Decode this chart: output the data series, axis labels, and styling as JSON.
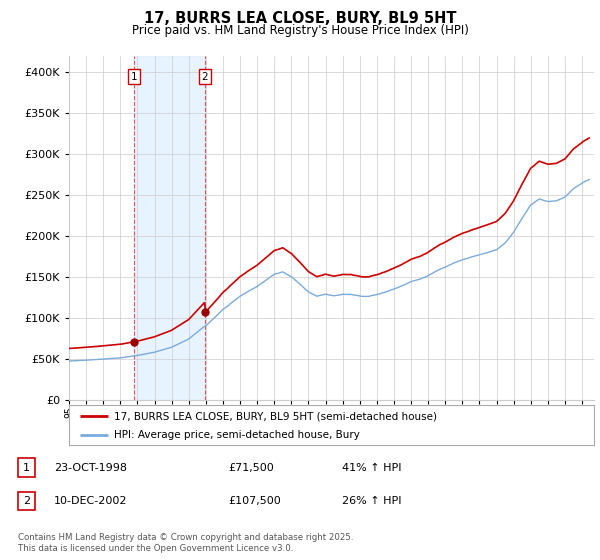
{
  "title": "17, BURRS LEA CLOSE, BURY, BL9 5HT",
  "subtitle": "Price paid vs. HM Land Registry's House Price Index (HPI)",
  "legend_line1": "17, BURRS LEA CLOSE, BURY, BL9 5HT (semi-detached house)",
  "legend_line2": "HPI: Average price, semi-detached house, Bury",
  "annotation1_date": "23-OCT-1998",
  "annotation1_price": "£71,500",
  "annotation1_hpi": "41% ↑ HPI",
  "annotation2_date": "10-DEC-2002",
  "annotation2_price": "£107,500",
  "annotation2_hpi": "26% ↑ HPI",
  "footer": "Contains HM Land Registry data © Crown copyright and database right 2025.\nThis data is licensed under the Open Government Licence v3.0.",
  "line_color_red": "#cc0000",
  "line_color_blue": "#7aabdb",
  "shaded_color": "#ddeeff",
  "vline_color": "#dd5555",
  "marker_color_red": "#990000",
  "ylim_min": 0,
  "ylim_max": 420000,
  "background_color": "#ffffff",
  "purchase1_year": 1998.81,
  "purchase1_price": 71500,
  "purchase2_year": 2002.94,
  "purchase2_price": 107500
}
